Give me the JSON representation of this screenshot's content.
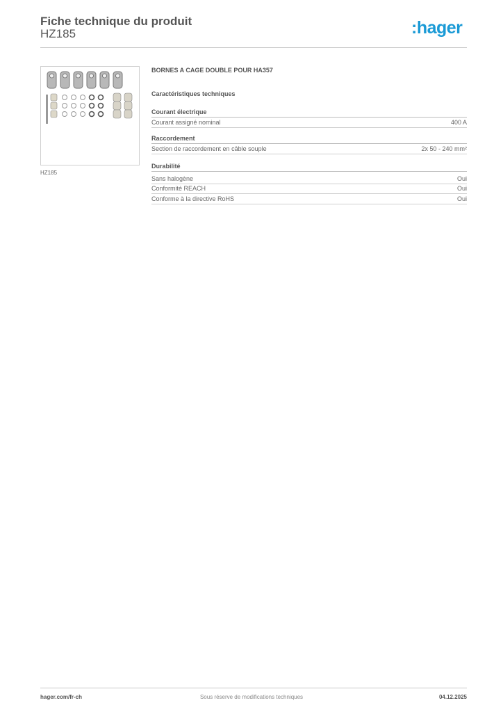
{
  "header": {
    "title": "Fiche technique du produit",
    "product_code": "HZ185",
    "logo_text": ":hager",
    "brand_color": "#1a9ad6"
  },
  "product": {
    "image_caption": "HZ185",
    "description": "BORNES A CAGE DOUBLE  POUR HA357"
  },
  "characteristics": {
    "title": "Caractéristiques techniques",
    "sections": [
      {
        "name": "Courant électrique",
        "rows": [
          {
            "label": "Courant assigné nominal",
            "value": "400 A"
          }
        ]
      },
      {
        "name": "Raccordement",
        "rows": [
          {
            "label": "Section de raccordement en câble souple",
            "value": "2x 50 - 240 mm²"
          }
        ]
      },
      {
        "name": "Durabilité",
        "rows": [
          {
            "label": "Sans halogène",
            "value": "Oui"
          },
          {
            "label": "Conformité REACH",
            "value": "Oui"
          },
          {
            "label": "Conforme à la directive RoHS",
            "value": "Oui"
          }
        ]
      }
    ]
  },
  "footer": {
    "website": "hager.com/fr-ch",
    "disclaimer": "Sous réserve de modifications techniques",
    "date": "04.12.2025"
  }
}
